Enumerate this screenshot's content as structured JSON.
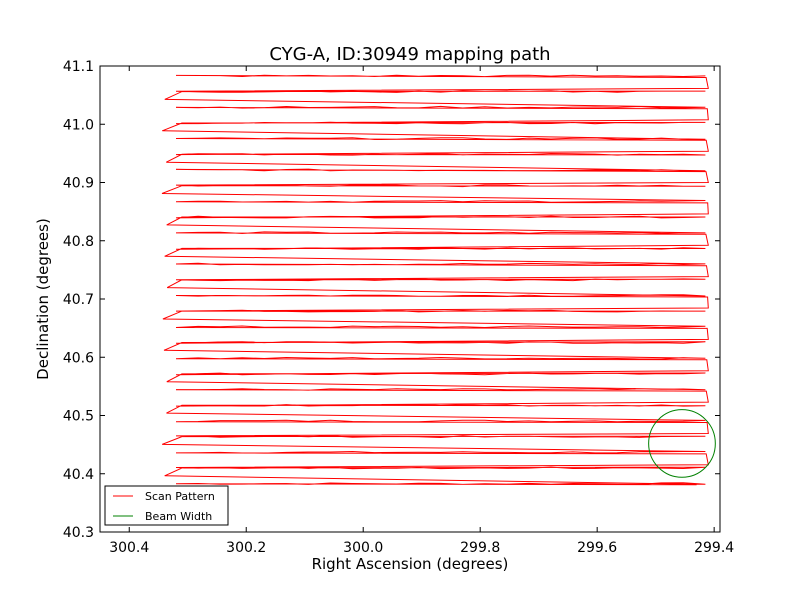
{
  "chart_data": {
    "type": "line",
    "title": "CYG-A, ID:30949 mapping path",
    "xlabel": "Right Ascension (degrees)",
    "ylabel": "Declination (degrees)",
    "xlim": [
      300.45,
      299.39
    ],
    "ylim": [
      40.3,
      41.1
    ],
    "x_ticks": [
      300.4,
      300.2,
      300.0,
      299.8,
      299.6,
      299.4
    ],
    "x_tick_labels": [
      "300.4",
      "300.2",
      "300.0",
      "299.8",
      "299.6",
      "299.4"
    ],
    "y_ticks": [
      40.3,
      40.4,
      40.5,
      40.6,
      40.7,
      40.8,
      40.9,
      41.0,
      41.1
    ],
    "y_tick_labels": [
      "40.3",
      "40.4",
      "40.5",
      "40.6",
      "40.7",
      "40.8",
      "40.9",
      "41.0",
      "41.1"
    ],
    "grid": false,
    "legend_position": "lower-left",
    "scan_rows": {
      "ra_left": 300.32,
      "ra_right": 299.415,
      "dec_first": 40.383,
      "dec_last": 41.083,
      "count": 27
    },
    "series": [
      {
        "name": "Scan Pattern",
        "color": "#ff0000",
        "style": "line",
        "note_points": "boustrophedon raster scan, rows spaced ~0.027 deg in declination"
      },
      {
        "name": "Beam Width",
        "color": "#008000",
        "style": "circle",
        "center": [
          299.455,
          40.452
        ],
        "radius_ra": 0.057,
        "radius_dec": 0.058
      }
    ]
  }
}
